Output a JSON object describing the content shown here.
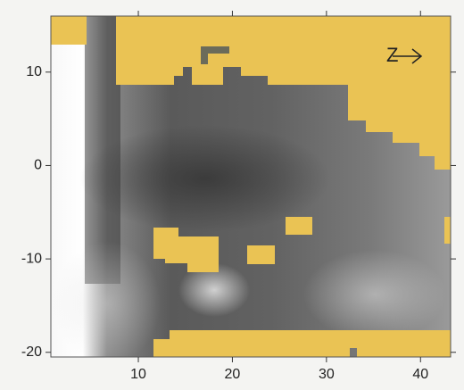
{
  "chart_data": {
    "type": "image",
    "annotation": "Z",
    "xlim": [
      0.7,
      43.2
    ],
    "ylim": [
      -20.5,
      16
    ],
    "xticks": [
      10,
      20,
      30,
      40
    ],
    "yticks": [
      10,
      0,
      -10,
      -20
    ]
  }
}
